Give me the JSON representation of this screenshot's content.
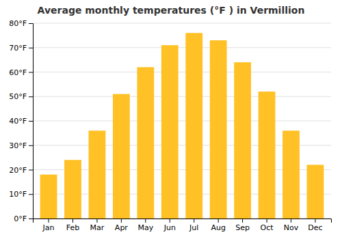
{
  "chart_data": {
    "type": "bar",
    "title": "Average monthly temperatures (°F ) in Vermillion",
    "categories": [
      "Jan",
      "Feb",
      "Mar",
      "Apr",
      "May",
      "Jun",
      "Jul",
      "Aug",
      "Sep",
      "Oct",
      "Nov",
      "Dec"
    ],
    "values": [
      18,
      24,
      36,
      51,
      62,
      71,
      76,
      73,
      64,
      52,
      36,
      22
    ],
    "color": "#FFC125",
    "ylim": [
      0,
      80
    ],
    "yticks": [
      {
        "value": 0,
        "label": "0°F"
      },
      {
        "value": 10,
        "label": "10°F"
      },
      {
        "value": 20,
        "label": "20°F"
      },
      {
        "value": 30,
        "label": "30°F"
      },
      {
        "value": 40,
        "label": "40°F"
      },
      {
        "value": 50,
        "label": "50°F"
      },
      {
        "value": 60,
        "label": "60°F"
      },
      {
        "value": 70,
        "label": "70°F"
      },
      {
        "value": 80,
        "label": "80°F"
      }
    ],
    "grid": true
  }
}
